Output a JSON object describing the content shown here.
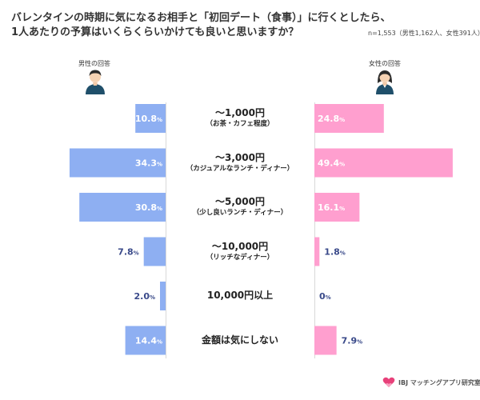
{
  "header": {
    "title_line1": "バレンタインの時期に気になるお相手と「初回デート（食事）」に行くとしたら、",
    "title_line2": "1人あたりの予算はいくらくらいかけても良いと思いますか？",
    "sample_note": "n=1,553（男性1,162人、女性391人）"
  },
  "panels": {
    "male_label": "男性の回答",
    "female_label": "女性の回答"
  },
  "logo": {
    "text": "IBJ マッチングアプリ研究室",
    "icon": "heart-logo-icon"
  },
  "colors": {
    "male": "#8eaff2",
    "female": "#ff9fcf",
    "value_text_dark": "#3a4a8a",
    "axis": "#d9d9d9"
  },
  "chart_data": {
    "type": "bar",
    "orientation": "horizontal-butterfly",
    "value_suffix": "%",
    "categories": [
      {
        "main": "〜1,000円",
        "sub": "（お茶・カフェ程度）"
      },
      {
        "main": "〜3,000円",
        "sub": "（カジュアルなランチ・ディナー）"
      },
      {
        "main": "〜5,000円",
        "sub": "（少し良いランチ・ディナー）"
      },
      {
        "main": "〜10,000円",
        "sub": "（リッチなディナー）"
      },
      {
        "main": "10,000円以上",
        "sub": ""
      },
      {
        "main": "金額は気にしない",
        "sub": ""
      }
    ],
    "series": [
      {
        "name": "男性の回答",
        "values": [
          10.8,
          34.3,
          30.8,
          7.8,
          2.0,
          14.4
        ]
      },
      {
        "name": "女性の回答",
        "values": [
          24.8,
          49.4,
          16.1,
          1.8,
          0,
          7.9
        ]
      }
    ],
    "value_labels": {
      "male": [
        "10.8",
        "34.3",
        "30.8",
        "7.8",
        "2.0",
        "14.4"
      ],
      "female": [
        "24.8",
        "49.4",
        "16.1",
        "1.8",
        "0",
        "7.9"
      ]
    }
  }
}
